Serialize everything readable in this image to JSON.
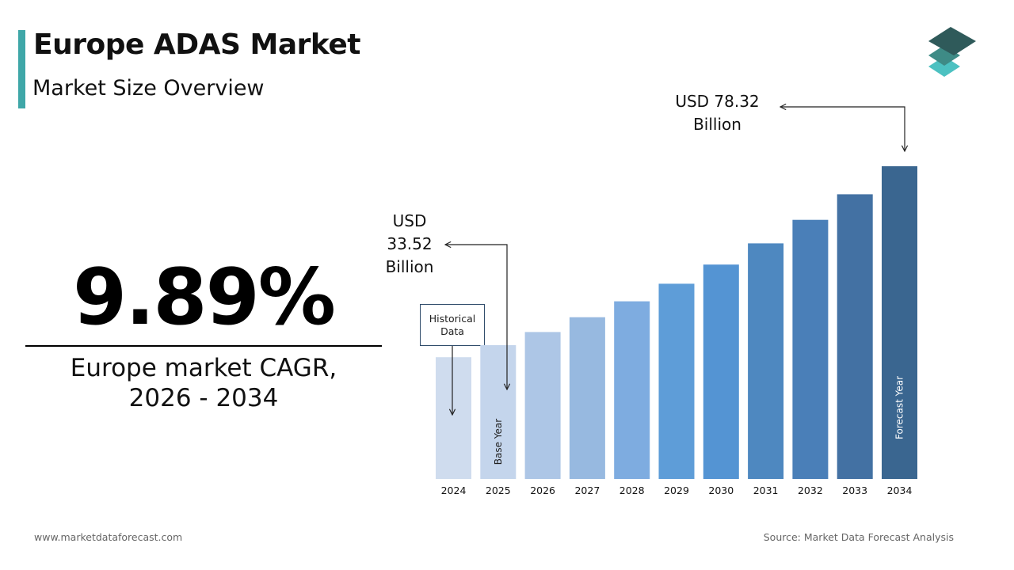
{
  "header": {
    "title": "Europe ADAS Market",
    "subtitle": "Market Size Overview"
  },
  "cagr": {
    "value": "9.89%",
    "label_line1": "Europe market CAGR,",
    "label_line2": "2026 - 2034"
  },
  "callouts": {
    "end_value": {
      "line1": "USD 78.32",
      "line2": "Billion"
    },
    "base_value": {
      "line1": "USD",
      "line2": "33.52",
      "line3": "Billion"
    },
    "historical": {
      "line1": "Historical",
      "line2": "Data"
    }
  },
  "chart_data": {
    "type": "bar",
    "categories": [
      "2024",
      "2025",
      "2026",
      "2027",
      "2028",
      "2029",
      "2030",
      "2031",
      "2032",
      "2033",
      "2034"
    ],
    "values": [
      30.5,
      33.52,
      36.8,
      40.5,
      44.5,
      48.9,
      53.7,
      59.0,
      64.9,
      71.3,
      78.32
    ],
    "bar_labels": {
      "2025": "Base Year",
      "2034": "Forecast Year"
    },
    "colors": [
      "#cfdcee",
      "#c4d5ec",
      "#adc6e6",
      "#97b9e0",
      "#7eace0",
      "#5e9dd8",
      "#5494d3",
      "#4e88c0",
      "#4a7fb8",
      "#4371a3",
      "#3a6690"
    ]
  },
  "footer": {
    "website": "www.marketdataforecast.com",
    "source": "Source: Market Data Forecast Analysis"
  },
  "colors": {
    "accent": "#3fa7a8",
    "logo_top": "#2f5a5a",
    "logo_mid": "#3e8b86",
    "logo_bottom": "#4cc1c1"
  }
}
